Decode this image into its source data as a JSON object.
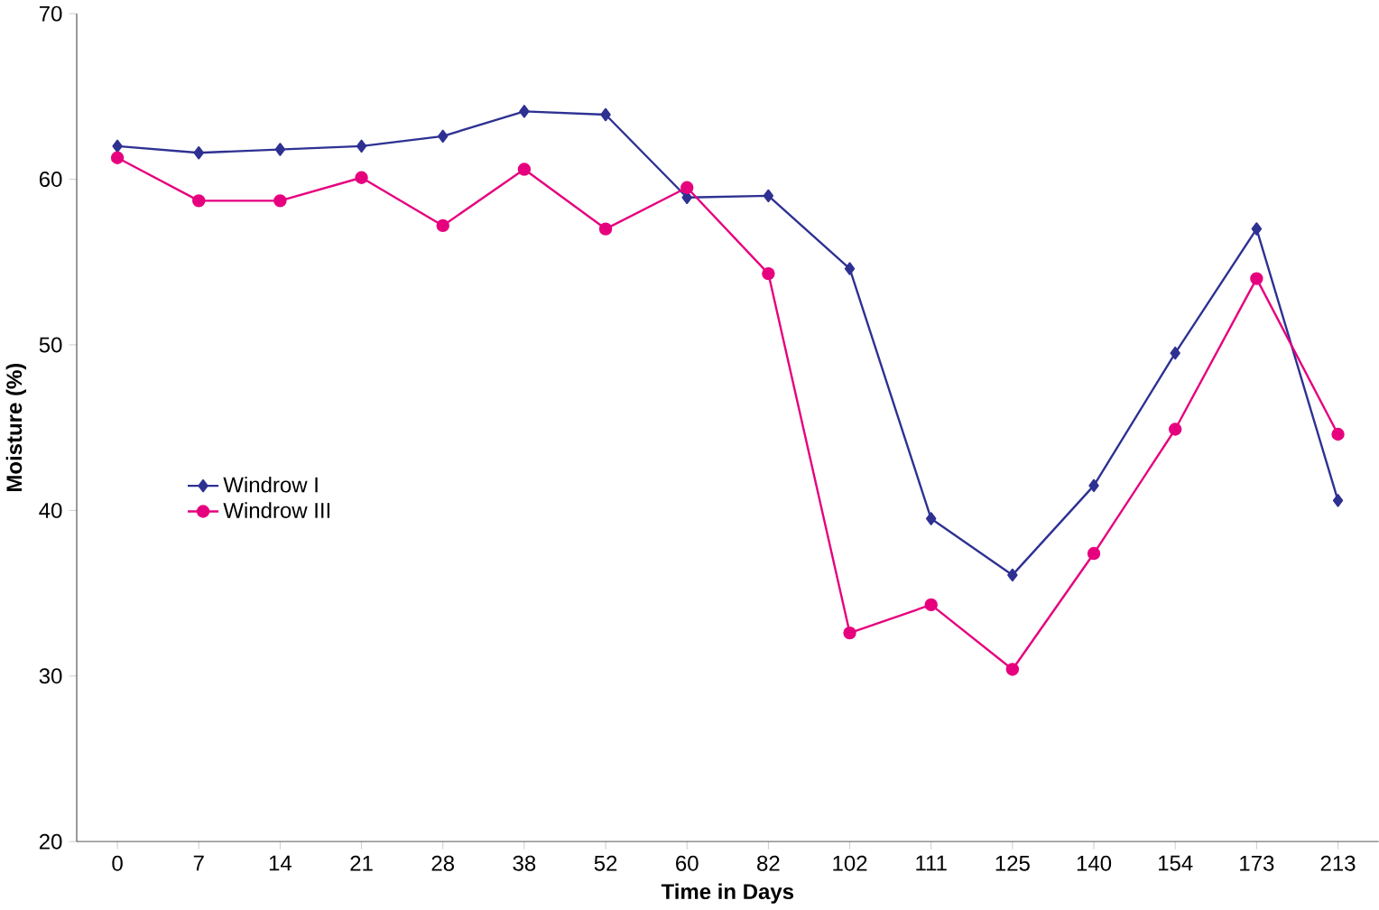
{
  "chart_data": {
    "type": "line",
    "xlabel": "Time in Days",
    "ylabel": "Moisture (%)",
    "categories": [
      "0",
      "7",
      "14",
      "21",
      "28",
      "38",
      "52",
      "60",
      "82",
      "102",
      "111",
      "125",
      "140",
      "154",
      "173",
      "213"
    ],
    "series": [
      {
        "name": "Windrow I",
        "color": "#2e3192",
        "marker": "diamond",
        "values": [
          62,
          61.6,
          61.8,
          62,
          62.6,
          64.1,
          63.9,
          58.9,
          59.0,
          54.6,
          39.5,
          36.1,
          41.5,
          49.5,
          57.0,
          40.6
        ]
      },
      {
        "name": "Windrow III",
        "color": "#e6007e",
        "marker": "circle",
        "values": [
          61.3,
          58.7,
          58.7,
          60.1,
          57.2,
          60.6,
          57.0,
          59.5,
          54.3,
          32.6,
          34.3,
          30.4,
          37.4,
          44.9,
          54.0,
          44.6
        ]
      }
    ],
    "ylim": [
      20,
      70
    ],
    "yticks": [
      20,
      30,
      40,
      50,
      60,
      70
    ],
    "grid": false,
    "legend": "left"
  }
}
